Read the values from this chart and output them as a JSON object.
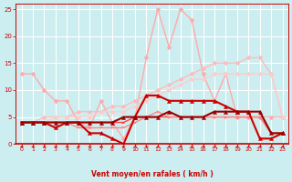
{
  "bg_color": "#cceef0",
  "grid_color": "#aadddd",
  "xlabel": "Vent moyen/en rafales ( km/h )",
  "xlabel_color": "#cc0000",
  "tick_color": "#cc0000",
  "xlim": [
    -0.5,
    23.5
  ],
  "ylim": [
    0,
    26
  ],
  "yticks": [
    0,
    5,
    10,
    15,
    20,
    25
  ],
  "xticks": [
    0,
    1,
    2,
    3,
    4,
    5,
    6,
    7,
    8,
    9,
    10,
    11,
    12,
    13,
    14,
    15,
    16,
    17,
    18,
    19,
    20,
    21,
    22,
    23
  ],
  "series": [
    {
      "x": [
        0,
        1,
        2,
        3,
        4,
        5,
        6,
        7,
        8,
        9,
        10,
        11,
        12,
        13,
        14,
        15,
        16,
        17,
        18,
        19,
        20,
        21,
        22,
        23
      ],
      "y": [
        13,
        13,
        10,
        8,
        8,
        4,
        3,
        8,
        4,
        1,
        5,
        16,
        25,
        18,
        25,
        23,
        13,
        8,
        13,
        5,
        5,
        5,
        5,
        5
      ],
      "color": "#ffaaaa",
      "lw": 1.0,
      "marker": "D",
      "ms": 2.5,
      "zorder": 2
    },
    {
      "x": [
        0,
        1,
        2,
        3,
        4,
        5,
        6,
        7,
        8,
        9,
        10,
        11,
        12,
        13,
        14,
        15,
        16,
        17,
        18,
        19,
        20,
        21,
        22,
        23
      ],
      "y": [
        4,
        4,
        5,
        5,
        5,
        6,
        6,
        6,
        7,
        7,
        8,
        9,
        10,
        11,
        12,
        13,
        14,
        15,
        15,
        15,
        16,
        16,
        13,
        5
      ],
      "color": "#ffbbbb",
      "lw": 1.0,
      "marker": "D",
      "ms": 2.5,
      "zorder": 2
    },
    {
      "x": [
        0,
        1,
        2,
        3,
        4,
        5,
        6,
        7,
        8,
        9,
        10,
        11,
        12,
        13,
        14,
        15,
        16,
        17,
        18,
        19,
        20,
        21,
        22,
        23
      ],
      "y": [
        4,
        4,
        4,
        5,
        5,
        5,
        5,
        6,
        6,
        6,
        7,
        8,
        9,
        10,
        11,
        12,
        12,
        13,
        13,
        13,
        13,
        13,
        13,
        5
      ],
      "color": "#ffcccc",
      "lw": 1.0,
      "marker": "D",
      "ms": 2.5,
      "zorder": 2
    },
    {
      "x": [
        0,
        1,
        2,
        3,
        4,
        5,
        6,
        7,
        8,
        9,
        10,
        11,
        12,
        13,
        14,
        15,
        16,
        17,
        18,
        19,
        20,
        21,
        22,
        23
      ],
      "y": [
        4,
        4,
        4,
        3,
        4,
        4,
        2,
        2,
        1,
        0,
        5,
        9,
        9,
        8,
        8,
        8,
        8,
        8,
        7,
        6,
        6,
        1,
        1,
        2
      ],
      "color": "#cc0000",
      "lw": 1.5,
      "marker": "^",
      "ms": 3,
      "zorder": 4
    },
    {
      "x": [
        0,
        1,
        2,
        3,
        4,
        5,
        6,
        7,
        8,
        9,
        10,
        11,
        12,
        13,
        14,
        15,
        16,
        17,
        18,
        19,
        20,
        21,
        22,
        23
      ],
      "y": [
        4,
        4,
        4,
        4,
        4,
        4,
        4,
        4,
        4,
        5,
        5,
        5,
        5,
        6,
        5,
        5,
        5,
        6,
        6,
        6,
        6,
        6,
        2,
        2
      ],
      "color": "#990000",
      "lw": 1.5,
      "marker": "^",
      "ms": 3,
      "zorder": 4
    },
    {
      "x": [
        0,
        1,
        2,
        3,
        4,
        5,
        6,
        7,
        8,
        9,
        10,
        11,
        12,
        13,
        14,
        15,
        16,
        17,
        18,
        19,
        20,
        21,
        22,
        23
      ],
      "y": [
        4,
        4,
        4,
        4,
        4,
        4,
        4,
        4,
        4,
        4,
        5,
        5,
        5,
        5,
        5,
        5,
        5,
        5,
        5,
        5,
        5,
        5,
        2,
        2
      ],
      "color": "#ff4444",
      "lw": 1.0,
      "marker": "s",
      "ms": 2,
      "zorder": 3
    },
    {
      "x": [
        0,
        1,
        2,
        3,
        4,
        5,
        6,
        7,
        8,
        9,
        10,
        11,
        12,
        13,
        14,
        15,
        16,
        17,
        18,
        19,
        20,
        21,
        22,
        23
      ],
      "y": [
        4,
        4,
        4,
        4,
        4,
        3,
        3,
        3,
        3,
        3,
        4,
        5,
        6,
        5,
        5,
        5,
        5,
        5,
        5,
        5,
        5,
        5,
        2,
        2
      ],
      "color": "#ff8888",
      "lw": 1.0,
      "marker": "s",
      "ms": 2,
      "zorder": 3
    }
  ]
}
